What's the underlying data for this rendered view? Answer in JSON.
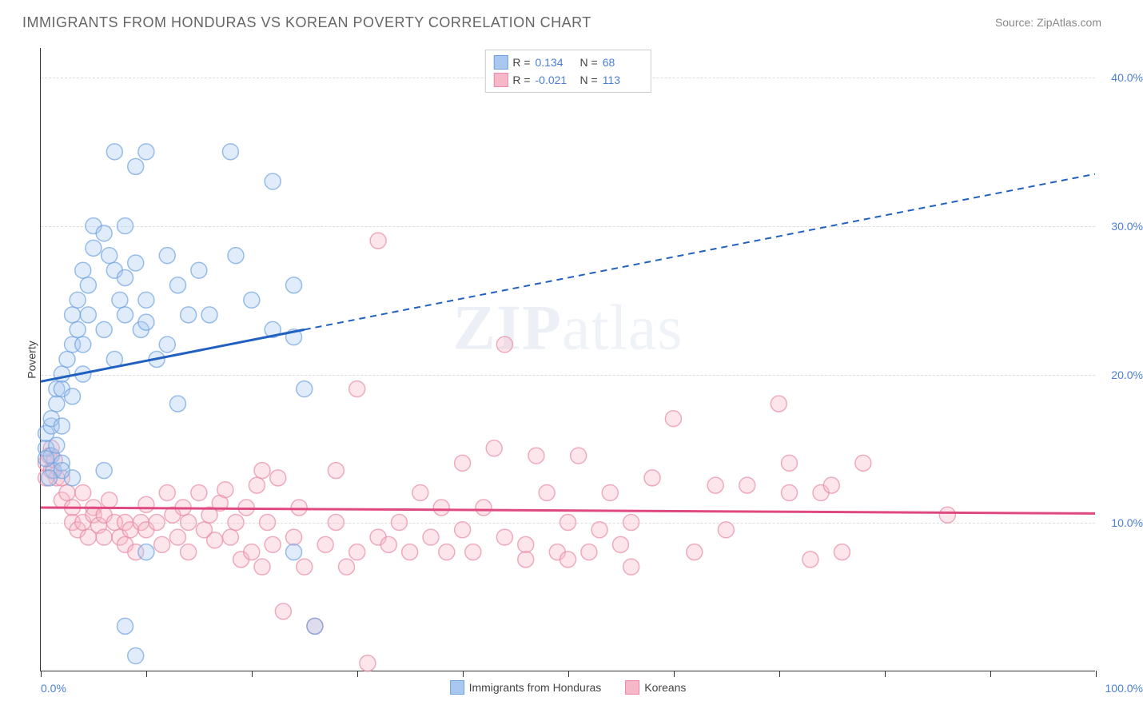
{
  "title": "IMMIGRANTS FROM HONDURAS VS KOREAN POVERTY CORRELATION CHART",
  "source": "Source: ZipAtlas.com",
  "watermark_bold": "ZIP",
  "watermark_light": "atlas",
  "y_axis_title": "Poverty",
  "chart": {
    "type": "scatter",
    "xlim": [
      0,
      100
    ],
    "ylim": [
      0,
      42
    ],
    "x_ticklabels": {
      "0": "0.0%",
      "100": "100.0%"
    },
    "y_ticklabels": {
      "10": "10.0%",
      "20": "20.0%",
      "30": "30.0%",
      "40": "40.0%"
    },
    "y_gridlines": [
      10,
      20,
      30,
      40
    ],
    "x_ticks": [
      0,
      10,
      20,
      30,
      40,
      50,
      60,
      70,
      80,
      90,
      100
    ],
    "grid_color": "#dddddd",
    "background": "#ffffff",
    "point_radius": 10,
    "series": [
      {
        "name": "Immigrants from Honduras",
        "color_fill": "#a8c8f0",
        "color_stroke": "#6fa3e0",
        "R": "0.134",
        "N": "68",
        "trend": {
          "x1": 0,
          "y1": 19.5,
          "x2": 25,
          "y2": 23.0,
          "x2_ext": 100,
          "y2_ext": 33.5,
          "color": "#2060c0"
        },
        "points": [
          [
            0.5,
            15
          ],
          [
            0.5,
            16
          ],
          [
            1,
            16.5
          ],
          [
            1,
            14.5
          ],
          [
            1.2,
            13.5
          ],
          [
            1,
            17
          ],
          [
            1.5,
            18
          ],
          [
            1.5,
            19
          ],
          [
            2,
            16.5
          ],
          [
            1.5,
            15.2
          ],
          [
            2,
            20
          ],
          [
            2.5,
            21
          ],
          [
            2,
            19
          ],
          [
            3,
            18.5
          ],
          [
            2,
            14
          ],
          [
            3,
            22
          ],
          [
            3,
            24
          ],
          [
            3.5,
            25
          ],
          [
            3.5,
            23
          ],
          [
            4,
            22
          ],
          [
            4,
            27
          ],
          [
            4.5,
            26
          ],
          [
            4,
            20
          ],
          [
            5,
            28.5
          ],
          [
            4.5,
            24
          ],
          [
            5,
            30
          ],
          [
            6,
            29.5
          ],
          [
            6.5,
            28
          ],
          [
            7,
            27
          ],
          [
            7.5,
            25
          ],
          [
            6,
            23
          ],
          [
            7,
            21
          ],
          [
            8,
            24
          ],
          [
            8,
            26.5
          ],
          [
            9,
            27.5
          ],
          [
            9.5,
            23
          ],
          [
            10,
            25
          ],
          [
            10,
            23.5
          ],
          [
            11,
            21
          ],
          [
            12,
            22
          ],
          [
            7,
            35
          ],
          [
            8,
            30
          ],
          [
            9,
            34
          ],
          [
            10,
            35
          ],
          [
            12,
            28
          ],
          [
            13,
            26
          ],
          [
            14,
            24
          ],
          [
            15,
            27
          ],
          [
            16,
            24
          ],
          [
            18,
            35
          ],
          [
            18.5,
            28
          ],
          [
            20,
            25
          ],
          [
            22,
            23
          ],
          [
            22,
            33
          ],
          [
            24,
            26
          ],
          [
            24,
            22.5
          ],
          [
            25,
            19
          ],
          [
            24,
            8
          ],
          [
            26,
            3
          ],
          [
            8,
            3
          ],
          [
            9,
            1
          ],
          [
            10,
            8
          ],
          [
            13,
            18
          ],
          [
            6,
            13.5
          ],
          [
            3,
            13
          ],
          [
            2,
            13.5
          ],
          [
            0.8,
            13
          ],
          [
            0.5,
            14.3
          ]
        ]
      },
      {
        "name": "Koreans",
        "color_fill": "#f5b8c8",
        "color_stroke": "#e88aa5",
        "R": "-0.021",
        "N": "113",
        "trend": {
          "x1": 0,
          "y1": 11.0,
          "x2": 100,
          "y2": 10.6,
          "color": "#e04880"
        },
        "points": [
          [
            0.5,
            14
          ],
          [
            1,
            15
          ],
          [
            1,
            13.5
          ],
          [
            1.5,
            13
          ],
          [
            2,
            13
          ],
          [
            2,
            11.5
          ],
          [
            2.5,
            12
          ],
          [
            3,
            11
          ],
          [
            3,
            10
          ],
          [
            3.5,
            9.5
          ],
          [
            4,
            12
          ],
          [
            4,
            10
          ],
          [
            4.5,
            9
          ],
          [
            5,
            11
          ],
          [
            5,
            10.5
          ],
          [
            5.5,
            9.8
          ],
          [
            6,
            10.5
          ],
          [
            6,
            9
          ],
          [
            6.5,
            11.5
          ],
          [
            7,
            10
          ],
          [
            7.5,
            9
          ],
          [
            8,
            10
          ],
          [
            8,
            8.5
          ],
          [
            8.5,
            9.5
          ],
          [
            9,
            8
          ],
          [
            9.5,
            10
          ],
          [
            10,
            9.5
          ],
          [
            10,
            11.2
          ],
          [
            11,
            10
          ],
          [
            11.5,
            8.5
          ],
          [
            12,
            12
          ],
          [
            12.5,
            10.5
          ],
          [
            13,
            9
          ],
          [
            13.5,
            11
          ],
          [
            14,
            10
          ],
          [
            14,
            8
          ],
          [
            15,
            12
          ],
          [
            15.5,
            9.5
          ],
          [
            16,
            10.5
          ],
          [
            16.5,
            8.8
          ],
          [
            17,
            11.3
          ],
          [
            17.5,
            12.2
          ],
          [
            18,
            9
          ],
          [
            18.5,
            10
          ],
          [
            19,
            7.5
          ],
          [
            19.5,
            11
          ],
          [
            20,
            8
          ],
          [
            20.5,
            12.5
          ],
          [
            21,
            7
          ],
          [
            21.5,
            10
          ],
          [
            22,
            8.5
          ],
          [
            22.5,
            13
          ],
          [
            23,
            4
          ],
          [
            24,
            9
          ],
          [
            24.5,
            11
          ],
          [
            25,
            7
          ],
          [
            26,
            3
          ],
          [
            27,
            8.5
          ],
          [
            28,
            10
          ],
          [
            28,
            13.5
          ],
          [
            29,
            7
          ],
          [
            30,
            8
          ],
          [
            30,
            19
          ],
          [
            31,
            0.5
          ],
          [
            32,
            9
          ],
          [
            33,
            8.5
          ],
          [
            34,
            10
          ],
          [
            35,
            8
          ],
          [
            36,
            12
          ],
          [
            37,
            9
          ],
          [
            38,
            11
          ],
          [
            38.5,
            8
          ],
          [
            40,
            9.5
          ],
          [
            40,
            14
          ],
          [
            41,
            8
          ],
          [
            42,
            11
          ],
          [
            43,
            15
          ],
          [
            44,
            22
          ],
          [
            44,
            9
          ],
          [
            46,
            8.5
          ],
          [
            46,
            7.5
          ],
          [
            47,
            14.5
          ],
          [
            48,
            12
          ],
          [
            49,
            8
          ],
          [
            50,
            10
          ],
          [
            50,
            7.5
          ],
          [
            51,
            14.5
          ],
          [
            52,
            8
          ],
          [
            53,
            9.5
          ],
          [
            54,
            12
          ],
          [
            55,
            8.5
          ],
          [
            56,
            7
          ],
          [
            56,
            10
          ],
          [
            58,
            13
          ],
          [
            60,
            17
          ],
          [
            62,
            8
          ],
          [
            64,
            12.5
          ],
          [
            65,
            9.5
          ],
          [
            67,
            12.5
          ],
          [
            70,
            18
          ],
          [
            71,
            12
          ],
          [
            71,
            14
          ],
          [
            73,
            7.5
          ],
          [
            74,
            12
          ],
          [
            75,
            12.5
          ],
          [
            76,
            8
          ],
          [
            78,
            14
          ],
          [
            86,
            10.5
          ],
          [
            32,
            29
          ],
          [
            21,
            13.5
          ],
          [
            0.8,
            14.5
          ],
          [
            0.5,
            13
          ],
          [
            1.3,
            14.2
          ]
        ]
      }
    ]
  },
  "stats_legend": {
    "r_label": "R =",
    "n_label": "N ="
  },
  "bottom_legend": {
    "items": [
      "Immigrants from Honduras",
      "Koreans"
    ]
  }
}
